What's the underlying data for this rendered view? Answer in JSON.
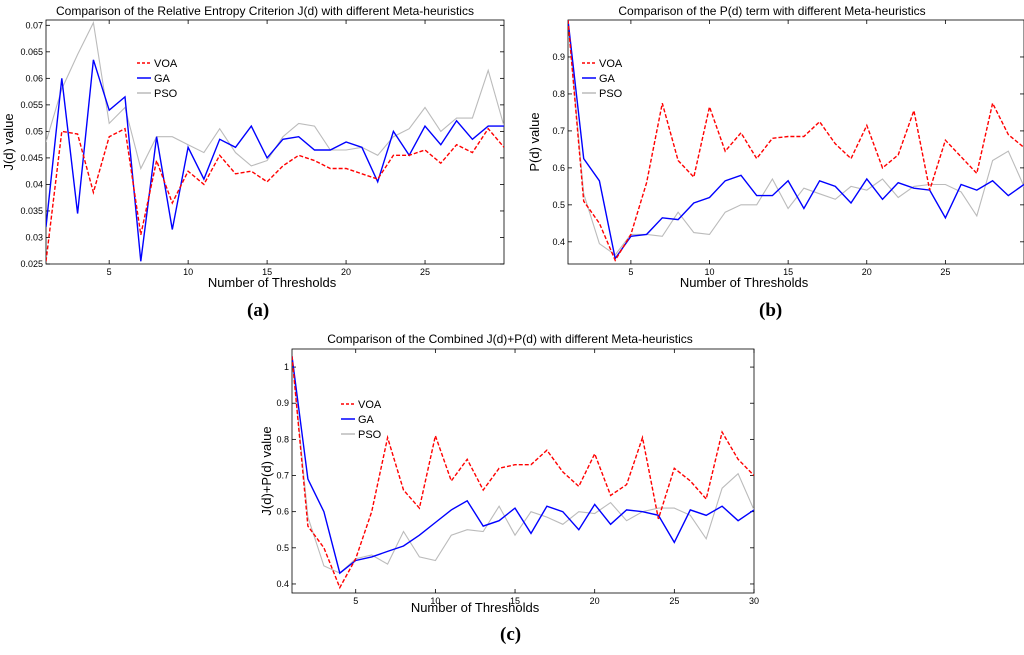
{
  "figure_labels": [
    "(a)",
    "(b)",
    "(c)"
  ],
  "chart_data": [
    {
      "type": "line",
      "title": "Comparison of the Relative Entropy Criterion J(d) with different Meta-heuristics",
      "xlabel": "Number of Thresholds",
      "ylabel": "J(d) value",
      "xlim": [
        1,
        30
      ],
      "ylim": [
        0.025,
        0.071
      ],
      "xticks": [
        5,
        10,
        15,
        20,
        25
      ],
      "yticks": [
        0.025,
        0.03,
        0.035,
        0.04,
        0.045,
        0.05,
        0.055,
        0.06,
        0.065,
        0.07
      ],
      "ytick_labels": [
        "0.025",
        "0.03",
        "0.035",
        "0.04",
        "0.045",
        "0.05",
        "0.055",
        "0.06",
        "0.065",
        "0.07"
      ],
      "x": [
        1,
        2,
        3,
        4,
        5,
        6,
        7,
        8,
        9,
        10,
        11,
        12,
        13,
        14,
        15,
        16,
        17,
        18,
        19,
        20,
        21,
        22,
        23,
        24,
        25,
        26,
        27,
        28,
        29,
        30
      ],
      "series": [
        {
          "name": "VOA",
          "color": "#ff0000",
          "dash": "dash",
          "values": [
            0.0255,
            0.05,
            0.0495,
            0.0385,
            0.049,
            0.0505,
            0.0305,
            0.0445,
            0.0365,
            0.0425,
            0.04,
            0.0455,
            0.042,
            0.0425,
            0.0405,
            0.0435,
            0.0455,
            0.0445,
            0.043,
            0.043,
            0.042,
            0.041,
            0.0455,
            0.0455,
            0.0465,
            0.044,
            0.0475,
            0.046,
            0.0505,
            0.047
          ]
        },
        {
          "name": "GA",
          "color": "#0000ff",
          "dash": "solid",
          "values": [
            0.032,
            0.06,
            0.0345,
            0.0635,
            0.054,
            0.0565,
            0.0255,
            0.049,
            0.0315,
            0.047,
            0.041,
            0.0485,
            0.047,
            0.051,
            0.045,
            0.0485,
            0.049,
            0.0465,
            0.0465,
            0.048,
            0.047,
            0.0405,
            0.05,
            0.0455,
            0.051,
            0.0475,
            0.052,
            0.0485,
            0.051,
            0.051
          ]
        },
        {
          "name": "PSO",
          "color": "#bbbbbb",
          "dash": "solid",
          "values": [
            0.048,
            0.058,
            0.0645,
            0.0705,
            0.0515,
            0.0545,
            0.043,
            0.049,
            0.049,
            0.0475,
            0.046,
            0.0505,
            0.046,
            0.0435,
            0.0445,
            0.049,
            0.0515,
            0.051,
            0.0465,
            0.0465,
            0.047,
            0.0455,
            0.049,
            0.0505,
            0.0545,
            0.05,
            0.0525,
            0.0525,
            0.0615,
            0.051
          ]
        }
      ],
      "legend": {
        "position": "top-left",
        "entries": [
          "VOA",
          "GA",
          "PSO"
        ]
      }
    },
    {
      "type": "line",
      "title": "Comparison of the P(d) term with different Meta-heuristics",
      "xlabel": "Number of Thresholds",
      "ylabel": "P(d) value",
      "xlim": [
        1,
        30
      ],
      "ylim": [
        0.34,
        1.0
      ],
      "xticks": [
        5,
        10,
        15,
        20,
        25
      ],
      "yticks": [
        0.4,
        0.5,
        0.6,
        0.7,
        0.8,
        0.9
      ],
      "ytick_labels": [
        "0.4",
        "0.5",
        "0.6",
        "0.7",
        "0.8",
        "0.9"
      ],
      "x": [
        1,
        2,
        3,
        4,
        5,
        6,
        7,
        8,
        9,
        10,
        11,
        12,
        13,
        14,
        15,
        16,
        17,
        18,
        19,
        20,
        21,
        22,
        23,
        24,
        25,
        26,
        27,
        28,
        29,
        30
      ],
      "series": [
        {
          "name": "VOA",
          "color": "#ff0000",
          "dash": "dash",
          "values": [
            1.0,
            0.51,
            0.45,
            0.35,
            0.42,
            0.56,
            0.775,
            0.62,
            0.575,
            0.765,
            0.645,
            0.695,
            0.625,
            0.68,
            0.685,
            0.685,
            0.725,
            0.665,
            0.625,
            0.715,
            0.6,
            0.635,
            0.755,
            0.54,
            0.675,
            0.63,
            0.585,
            0.775,
            0.69,
            0.655
          ]
        },
        {
          "name": "GA",
          "color": "#0000ff",
          "dash": "solid",
          "values": [
            1.0,
            0.625,
            0.565,
            0.355,
            0.415,
            0.42,
            0.465,
            0.46,
            0.505,
            0.52,
            0.565,
            0.58,
            0.525,
            0.525,
            0.565,
            0.49,
            0.565,
            0.55,
            0.505,
            0.57,
            0.515,
            0.56,
            0.545,
            0.54,
            0.465,
            0.555,
            0.54,
            0.565,
            0.525,
            0.555
          ]
        },
        {
          "name": "PSO",
          "color": "#bbbbbb",
          "dash": "solid",
          "values": [
            1.0,
            0.53,
            0.395,
            0.365,
            0.42,
            0.42,
            0.415,
            0.48,
            0.425,
            0.42,
            0.48,
            0.5,
            0.5,
            0.57,
            0.49,
            0.545,
            0.53,
            0.515,
            0.55,
            0.54,
            0.57,
            0.52,
            0.55,
            0.555,
            0.555,
            0.535,
            0.47,
            0.62,
            0.645,
            0.55
          ]
        }
      ],
      "legend": {
        "position": "top-left",
        "entries": [
          "VOA",
          "GA",
          "PSO"
        ]
      }
    },
    {
      "type": "line",
      "title": "Comparison of the Combined J(d)+P(d) with different Meta-heuristics",
      "xlabel": "Number of Thresholds",
      "ylabel": "J(d)+P(d) value",
      "xlim": [
        1,
        30
      ],
      "ylim": [
        0.375,
        1.05
      ],
      "xticks": [
        5,
        10,
        15,
        20,
        25,
        30
      ],
      "yticks": [
        0.4,
        0.5,
        0.6,
        0.7,
        0.8,
        0.9,
        1.0
      ],
      "ytick_labels": [
        "0.4",
        "0.5",
        "0.6",
        "0.7",
        "0.8",
        "0.9",
        "1"
      ],
      "x": [
        1,
        2,
        3,
        4,
        5,
        6,
        7,
        8,
        9,
        10,
        11,
        12,
        13,
        14,
        15,
        16,
        17,
        18,
        19,
        20,
        21,
        22,
        23,
        24,
        25,
        26,
        27,
        28,
        29,
        30
      ],
      "series": [
        {
          "name": "VOA",
          "color": "#ff0000",
          "dash": "dash",
          "values": [
            1.03,
            0.56,
            0.5,
            0.39,
            0.47,
            0.6,
            0.805,
            0.66,
            0.61,
            0.81,
            0.685,
            0.745,
            0.66,
            0.72,
            0.73,
            0.73,
            0.77,
            0.71,
            0.67,
            0.76,
            0.645,
            0.675,
            0.805,
            0.58,
            0.72,
            0.685,
            0.635,
            0.82,
            0.745,
            0.7
          ]
        },
        {
          "name": "GA",
          "color": "#0000ff",
          "dash": "solid",
          "values": [
            1.03,
            0.69,
            0.6,
            0.43,
            0.465,
            0.475,
            0.49,
            0.505,
            0.535,
            0.57,
            0.605,
            0.63,
            0.56,
            0.575,
            0.61,
            0.54,
            0.615,
            0.6,
            0.55,
            0.62,
            0.565,
            0.605,
            0.6,
            0.59,
            0.515,
            0.605,
            0.59,
            0.615,
            0.575,
            0.605
          ]
        },
        {
          "name": "PSO",
          "color": "#bbbbbb",
          "dash": "solid",
          "values": [
            1.03,
            0.585,
            0.45,
            0.43,
            0.47,
            0.48,
            0.455,
            0.545,
            0.475,
            0.465,
            0.535,
            0.55,
            0.545,
            0.615,
            0.535,
            0.6,
            0.585,
            0.565,
            0.6,
            0.595,
            0.625,
            0.575,
            0.6,
            0.61,
            0.61,
            0.59,
            0.525,
            0.665,
            0.705,
            0.605
          ]
        }
      ],
      "legend": {
        "position": "top-left",
        "entries": [
          "VOA",
          "GA",
          "PSO"
        ]
      }
    }
  ]
}
